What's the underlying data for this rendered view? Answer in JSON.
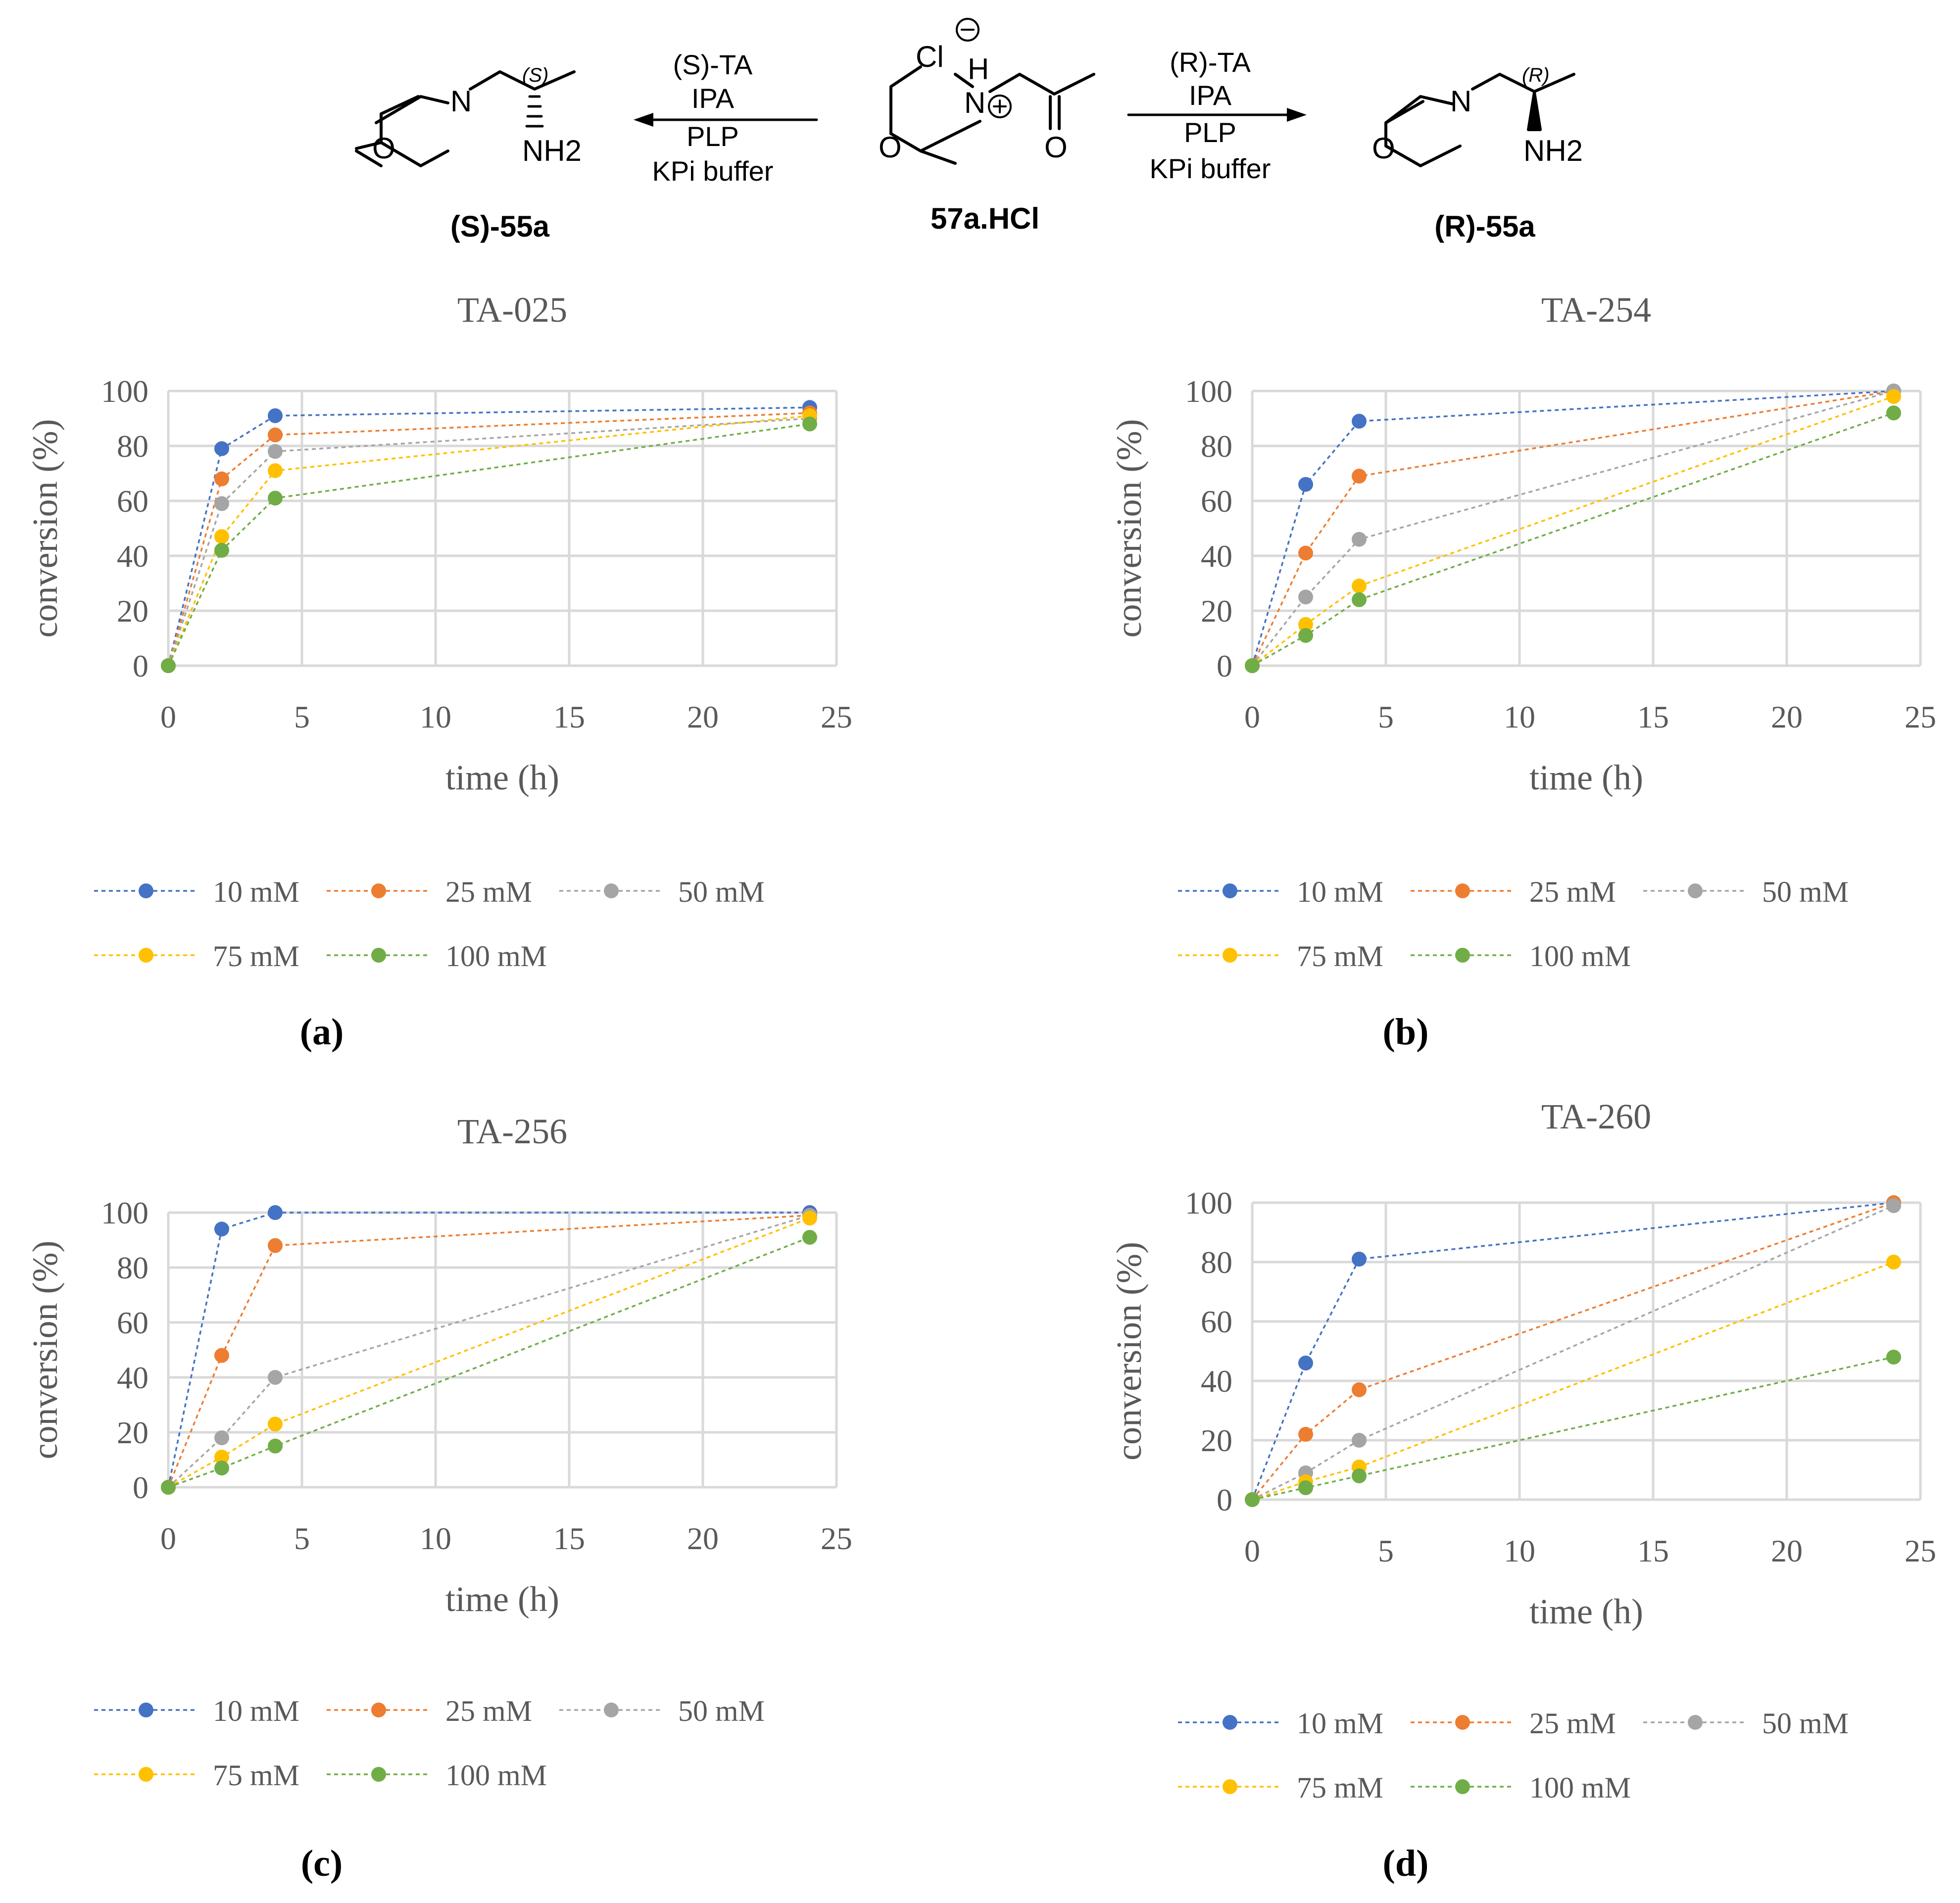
{
  "scheme": {
    "left_conditions": [
      "(S)-TA",
      "IPA",
      "PLP",
      "KPi buffer"
    ],
    "right_conditions": [
      "(R)-TA",
      "IPA",
      "PLP",
      "KPi buffer"
    ],
    "left_product_label": "(S)-55a",
    "center_label": "57a.HCl",
    "right_product_label": "(R)-55a",
    "left_stereo": "(S)",
    "right_stereo": "(R)",
    "atoms": {
      "O": "O",
      "N": "N",
      "NH2": "NH2",
      "Cl": "Cl",
      "H": "H"
    }
  },
  "colors": {
    "10 mM": "#4472c4",
    "25 mM": "#ed7d31",
    "50 mM": "#a5a5a5",
    "75 mM": "#ffc000",
    "100 mM": "#70ad47",
    "grid": "#d9d9d9",
    "text": "#595959"
  },
  "chart_data": [
    {
      "type": "scatter",
      "panel_label": "(a)",
      "title": "TA-025",
      "xlabel": "time (h)",
      "ylabel": "conversion (%)",
      "xlim": [
        0,
        25
      ],
      "ylim": [
        0,
        100
      ],
      "xticks": [
        0,
        5,
        10,
        15,
        20,
        25
      ],
      "yticks": [
        0,
        20,
        40,
        60,
        80,
        100
      ],
      "grid": true,
      "legend": "bottom",
      "x": [
        0,
        2,
        4,
        24
      ],
      "series": [
        {
          "name": "10 mM",
          "values": [
            0,
            79,
            91,
            94
          ]
        },
        {
          "name": "25 mM",
          "values": [
            0,
            68,
            84,
            92
          ]
        },
        {
          "name": "50 mM",
          "values": [
            0,
            59,
            78,
            90
          ]
        },
        {
          "name": "75 mM",
          "values": [
            0,
            47,
            71,
            91
          ]
        },
        {
          "name": "100 mM",
          "values": [
            0,
            42,
            61,
            88
          ]
        }
      ]
    },
    {
      "type": "scatter",
      "panel_label": "(b)",
      "title": "TA-254",
      "xlabel": "time (h)",
      "ylabel": "conversion (%)",
      "xlim": [
        0,
        25
      ],
      "ylim": [
        0,
        100
      ],
      "xticks": [
        0,
        5,
        10,
        15,
        20,
        25
      ],
      "yticks": [
        0,
        20,
        40,
        60,
        80,
        100
      ],
      "grid": true,
      "legend": "bottom",
      "x": [
        0,
        2,
        4,
        24
      ],
      "series": [
        {
          "name": "10 mM",
          "values": [
            0,
            66,
            89,
            100
          ]
        },
        {
          "name": "25 mM",
          "values": [
            0,
            41,
            69,
            100
          ]
        },
        {
          "name": "50 mM",
          "values": [
            0,
            25,
            46,
            100
          ]
        },
        {
          "name": "75 mM",
          "values": [
            0,
            15,
            29,
            98
          ]
        },
        {
          "name": "100 mM",
          "values": [
            0,
            11,
            24,
            92
          ]
        }
      ]
    },
    {
      "type": "scatter",
      "panel_label": "(c)",
      "title": "TA-256",
      "xlabel": "time (h)",
      "ylabel": "conversion (%)",
      "xlim": [
        0,
        25
      ],
      "ylim": [
        0,
        100
      ],
      "xticks": [
        0,
        5,
        10,
        15,
        20,
        25
      ],
      "yticks": [
        0,
        20,
        40,
        60,
        80,
        100
      ],
      "grid": true,
      "legend": "bottom",
      "x": [
        0,
        2,
        4,
        24
      ],
      "series": [
        {
          "name": "10 mM",
          "values": [
            0,
            94,
            100,
            100
          ]
        },
        {
          "name": "25 mM",
          "values": [
            0,
            48,
            88,
            99
          ]
        },
        {
          "name": "50 mM",
          "values": [
            0,
            18,
            40,
            99
          ]
        },
        {
          "name": "75 mM",
          "values": [
            0,
            11,
            23,
            98
          ]
        },
        {
          "name": "100 mM",
          "values": [
            0,
            7,
            15,
            91
          ]
        }
      ]
    },
    {
      "type": "scatter",
      "panel_label": "(d)",
      "title": "TA-260",
      "xlabel": "time (h)",
      "ylabel": "conversion (%)",
      "xlim": [
        0,
        25
      ],
      "ylim": [
        0,
        100
      ],
      "xticks": [
        0,
        5,
        10,
        15,
        20,
        25
      ],
      "yticks": [
        0,
        20,
        40,
        60,
        80,
        100
      ],
      "grid": true,
      "legend": "bottom",
      "x": [
        0,
        2,
        4,
        24
      ],
      "series": [
        {
          "name": "10 mM",
          "values": [
            0,
            46,
            81,
            100
          ]
        },
        {
          "name": "25 mM",
          "values": [
            0,
            22,
            37,
            100
          ]
        },
        {
          "name": "50 mM",
          "values": [
            0,
            9,
            20,
            99
          ]
        },
        {
          "name": "75 mM",
          "values": [
            0,
            6,
            11,
            80
          ]
        },
        {
          "name": "100 mM",
          "values": [
            0,
            4,
            8,
            48
          ]
        }
      ]
    }
  ]
}
